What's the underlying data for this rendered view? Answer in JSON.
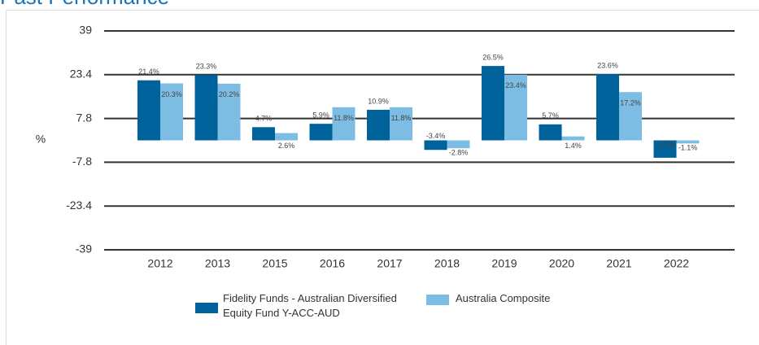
{
  "chart_data": {
    "type": "bar",
    "title": "Past Performance",
    "ylabel": "%",
    "categories": [
      "2012",
      "2013",
      "2015",
      "2016",
      "2017",
      "2018",
      "2019",
      "2020",
      "2021",
      "2022"
    ],
    "series": [
      {
        "name": "Fidelity Funds - Australian Diversified Equity Fund Y-ACC-AUD",
        "color": "#00629b",
        "values": [
          21.4,
          23.3,
          4.7,
          5.9,
          10.9,
          -3.4,
          26.5,
          5.7,
          23.6,
          -6.2
        ],
        "value_labels": [
          "21.4%",
          "23.3%",
          "4.7%",
          "5.9%",
          "10.9%",
          "-3.4%",
          "26.5%",
          "5.7%",
          "23.6%",
          "-6.2%"
        ]
      },
      {
        "name": "Australia Composite",
        "color": "#7dbde3",
        "values": [
          20.3,
          20.2,
          2.6,
          11.8,
          11.8,
          -2.8,
          23.4,
          1.4,
          17.2,
          -1.1
        ],
        "value_labels": [
          "20.3%",
          "20.2%",
          "2.6%",
          "11.8%",
          "11.8%",
          "-2.8%",
          "23.4%",
          "1.4%",
          "17.2%",
          "-1.1%"
        ]
      }
    ],
    "ylim": [
      -39,
      39
    ],
    "yticks": [
      -39,
      -23.4,
      -7.8,
      7.8,
      23.4,
      39
    ],
    "grid": true
  }
}
